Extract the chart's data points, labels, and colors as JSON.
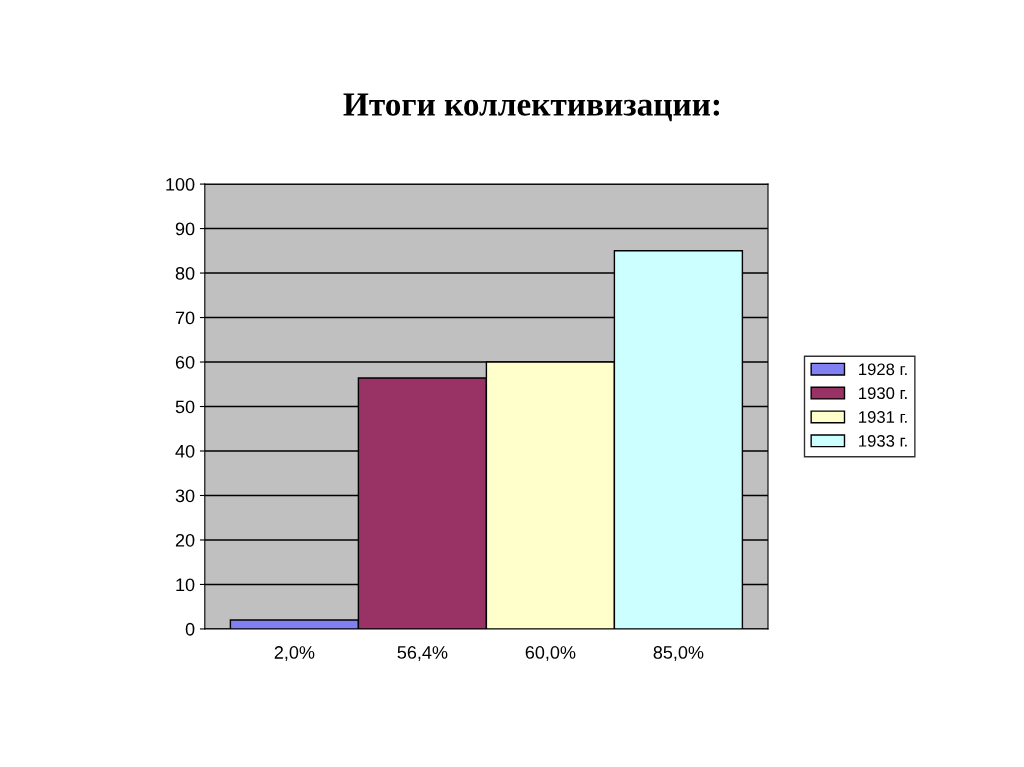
{
  "chart_data": {
    "type": "bar",
    "title": "Итоги коллективизации:",
    "categories": [
      "2,0%",
      "56,4%",
      "60,0%",
      "85,0%"
    ],
    "series": [
      {
        "name": "1928 г.",
        "color": "#8080f0",
        "values": [
          2.0,
          null,
          null,
          null
        ]
      },
      {
        "name": "1930 г.",
        "color": "#993366",
        "values": [
          null,
          56.4,
          null,
          null
        ]
      },
      {
        "name": "1931 г.",
        "color": "#ffffcc",
        "values": [
          null,
          null,
          60.0,
          null
        ]
      },
      {
        "name": "1933 г.",
        "color": "#ccffff",
        "values": [
          null,
          null,
          null,
          85.0
        ]
      }
    ],
    "ylim": [
      0,
      100
    ],
    "yticks": [
      0,
      10,
      20,
      30,
      40,
      50,
      60,
      70,
      80,
      90,
      100
    ],
    "grid": "y",
    "legend": "right"
  }
}
